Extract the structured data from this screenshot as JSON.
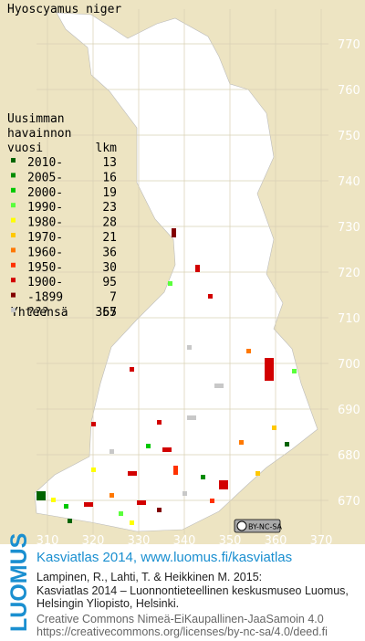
{
  "title": "Hyoscyamus niger",
  "legend": {
    "header": [
      "Uusimman",
      "havainnon",
      "vuosi"
    ],
    "count_header": "lkm",
    "rows": [
      {
        "label": "2010-",
        "count": 13,
        "color": "#006400"
      },
      {
        "label": "2005-",
        "count": 16,
        "color": "#008c00"
      },
      {
        "label": "2000-",
        "count": 19,
        "color": "#00c800"
      },
      {
        "label": "1990-",
        "count": 23,
        "color": "#5aff3c"
      },
      {
        "label": "1980-",
        "count": 28,
        "color": "#ffff00"
      },
      {
        "label": "1970-",
        "count": 21,
        "color": "#ffc800"
      },
      {
        "label": "1960-",
        "count": 36,
        "color": "#ff7800"
      },
      {
        "label": "1950-",
        "count": 30,
        "color": "#ff3200"
      },
      {
        "label": "1900-",
        "count": 95,
        "color": "#d20000"
      },
      {
        "label": "-1899",
        "count": 7,
        "color": "#820000"
      },
      {
        "label": "???",
        "count": 67,
        "color": "#c8c8c8"
      }
    ],
    "total_label": "Yhteensä",
    "total": 355
  },
  "grid": {
    "northings": [
      770,
      760,
      750,
      740,
      730,
      720,
      710,
      700,
      690,
      680,
      670
    ],
    "eastings": [
      310,
      320,
      330,
      340,
      350,
      360,
      370
    ]
  },
  "license_badge": "BY-NC-SA",
  "footer": {
    "brand": "LUOMUS",
    "link": "Kasviatlas 2014, www.luomus.fi/kasviatlas",
    "citation": [
      "Lampinen, R., Lahti, T. & Heikkinen M. 2015:",
      "Kasviatlas 2014 – Luonnontieteellinen keskusmuseo Luomus,",
      "Helsingin Yliopisto, Helsinki."
    ],
    "license": [
      "Creative Commons Nimeä-EiKaupallinen-JaaSamoin 4.0",
      "https://creativecommons.org/licenses/by-nc-sa/4.0/deed.fi"
    ]
  }
}
